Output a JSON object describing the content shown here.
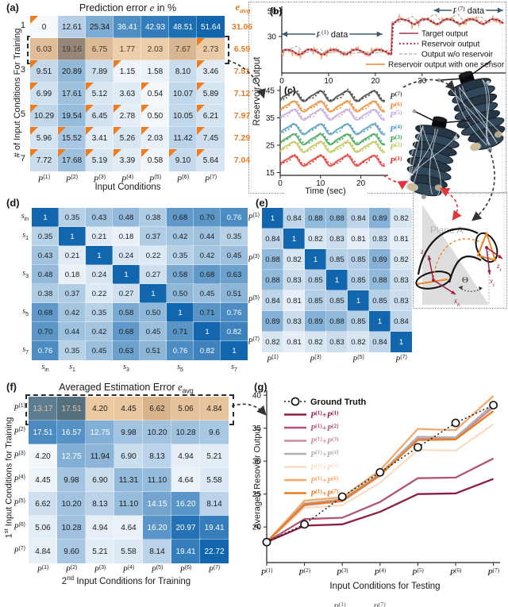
{
  "colors": {
    "accent_orange": "#e87a22",
    "triangle_marker": "#ed7d21",
    "heat_dark_blue": "#1166ae",
    "heat_light": "#f5f9fc",
    "connector_black": "#333333",
    "connector_red": "#e3343c",
    "region_arrow": "#3d5a70"
  },
  "panel_a": {
    "tag": "(a)",
    "title": "Prediction error e in %",
    "eavg_header": "e_avg",
    "ylabel": "# of Input Conditions For Training",
    "xlabel": "Input Conditions",
    "row_ticks": [
      "1",
      "",
      "3",
      "",
      "5",
      "",
      "7"
    ],
    "col_labels": [
      "P(1)",
      "P(2)",
      "P(3)",
      "P(4)",
      "P(5)",
      "P(6)",
      "P(7)"
    ],
    "highlight_row": 1,
    "highlight_cell_colors": [
      "#dfbd98",
      "#958677",
      "#dcba95",
      "#ecceaa",
      "#ebcda9",
      "#d8b691",
      "#e9cba7"
    ],
    "highlight_text_color": "#4a3a2c"
  },
  "panel_b": {
    "tag": "(b)",
    "ylabel_shared": "Reservoir Output",
    "region_labels": [
      "P(1) data",
      "P(7) data"
    ],
    "legend": [
      {
        "label": "Target output",
        "color": "#c06a78",
        "style": "solid"
      },
      {
        "label": "Reservoir output",
        "color": "#a21834",
        "style": "dotted"
      },
      {
        "label": "Output w/o reservoir",
        "color": "#9a9a9a",
        "style": "dashed"
      },
      {
        "label": "Reservoir output with one sensor",
        "color": "#f0a263",
        "style": "solid"
      }
    ]
  },
  "panel_c": {
    "tag": "(c)",
    "xlabel": "Time (sec)"
  },
  "panel_d": {
    "tag": "(d)",
    "row_labels": [
      "s_in",
      "s_1",
      "",
      "s_3",
      "",
      "s_5",
      "",
      "s_7"
    ],
    "col_labels": [
      "s_in",
      "s_1",
      "",
      "s_3",
      "",
      "s_5",
      "",
      "s_7"
    ]
  },
  "panel_e": {
    "tag": "(e)",
    "row_labels": [
      "P(1)",
      "",
      "P(3)",
      "",
      "P(5)",
      "",
      "P(7)"
    ],
    "col_labels": [
      "P(1)",
      "",
      "P(3)",
      "",
      "P(5)",
      "",
      "P(7)"
    ]
  },
  "panel_f": {
    "tag": "(f)",
    "title": "Averaged Estimation Error e_avg",
    "ylabel": "1st Input Conditions for Training",
    "xlabel": "2nd Input Conditions for Training",
    "row_labels": [
      "P(1)",
      "P(2)",
      "P(3)",
      "P(4)",
      "P(5)",
      "P(6)",
      "P(7)"
    ],
    "col_labels": [
      "P(1)",
      "P(2)",
      "P(3)",
      "P(4)",
      "P(5)",
      "P(6)",
      "P(7)"
    ],
    "highlight_row": 0,
    "highlight_cell_colors": [
      "#5c7d92",
      "#54707f",
      "#ecc9a3",
      "#eac7a1",
      "#d9b38c",
      "#e5c29b",
      "#e6c49d"
    ],
    "highlight_text_colors": [
      "#dfc3a0",
      "#dfc3a0",
      "#222222",
      "#222222",
      "#222222",
      "#222222",
      "#222222"
    ]
  },
  "panel_g": {
    "tag": "(g)",
    "ylabel": "Averaged Resovoir Output",
    "xlabel": "Input Conditions for Testing"
  },
  "plane": {
    "label": "Plane A",
    "z_base": "z_b",
    "x_base": "x_b",
    "z_tip": "z_t",
    "x_tip": "x_t",
    "angle": "Θ"
  },
  "caption_fragment": {
    "left": "P(1)",
    "right": "P(7)"
  },
  "chart_data": [
    {
      "id": "a",
      "type": "heatmap",
      "title": "Prediction error e in %",
      "rows": [
        "1",
        "2",
        "3",
        "4",
        "5",
        "6",
        "7"
      ],
      "cols": [
        "P(1)",
        "P(2)",
        "P(3)",
        "P(4)",
        "P(5)",
        "P(6)",
        "P(7)"
      ],
      "values": [
        [
          "0",
          "12.61",
          "25.34",
          "36.41",
          "42.93",
          "48.51",
          "51.64"
        ],
        [
          "6.03",
          "19.16",
          "6.75",
          "1.77",
          "2.03",
          "7.67",
          "2.73"
        ],
        [
          "9.51",
          "20.89",
          "7.89",
          "1.15",
          "1.58",
          "8.10",
          "3.46"
        ],
        [
          "6.99",
          "17.61",
          "5.12",
          "3.63",
          "0.54",
          "10.07",
          "5.89"
        ],
        [
          "10.29",
          "19.54",
          "6.45",
          "2.78",
          "0.50",
          "10.05",
          "6.21"
        ],
        [
          "5.96",
          "15.52",
          "3.41",
          "5.26",
          "2.03",
          "11.42",
          "7.45"
        ],
        [
          "7.72",
          "17.68",
          "5.19",
          "3.39",
          "0.58",
          "9.10",
          "5.64"
        ]
      ],
      "row_avg": [
        "31.06",
        "6.59",
        "7.51",
        "7.12",
        "7.97",
        "7.29",
        "7.04"
      ],
      "triangle_marked_cols_by_row": [
        [
          0
        ],
        [
          6
        ],
        [
          0,
          3,
          6
        ],
        [
          0,
          2,
          4,
          6
        ],
        [
          0,
          2,
          3,
          4,
          6
        ],
        [
          0,
          1,
          2,
          3,
          4,
          6
        ],
        [
          0,
          1,
          2,
          3,
          4,
          5,
          6
        ]
      ]
    },
    {
      "id": "b",
      "type": "line",
      "x_range": [
        0,
        47.5
      ],
      "xticks": [
        0,
        10,
        20,
        30,
        40
      ],
      "yticks": [
        30,
        50
      ],
      "transition_t": 23.5,
      "series": [
        {
          "name": "Target output",
          "color": "#c06a78",
          "style": "solid",
          "desc": "smooth periodic signal, baseline 18 during P(1) data (t<23.5s), baseline 42 during P(7) data, amplitude ~1.9, period ~4.9s"
        },
        {
          "name": "Reservoir output",
          "color": "#a21834",
          "style": "dotted",
          "desc": "closely tracks target output"
        },
        {
          "name": "Output w/o reservoir",
          "color": "#9a9a9a",
          "style": "dashed",
          "desc": "sawtooth-like overshoot up to ~+6.5 above baseline"
        },
        {
          "name": "Reservoir output with one sensor",
          "color": "#f0a263",
          "style": "solid",
          "desc": "noisy version of target, spikes up to ±5"
        }
      ],
      "regions": [
        {
          "label": "P(1) data",
          "x_from": 0,
          "x_to": 23.5
        },
        {
          "label": "P(7) data",
          "x_from": 24.5,
          "x_to": 47.5
        }
      ]
    },
    {
      "id": "c",
      "type": "line",
      "xlabel": "Time (sec)",
      "x_range": [
        0,
        26
      ],
      "xticks": [
        0,
        10,
        20
      ],
      "yticks": [
        15,
        25,
        35,
        45
      ],
      "amplitude": 1.7,
      "period": 6.6,
      "series": [
        {
          "name": "P(1)",
          "color": "#e8302a",
          "baseline": 19.4
        },
        {
          "name": "P(2)",
          "color": "#bfc453",
          "baseline": 24.4
        },
        {
          "name": "P(3)",
          "color": "#3aa553",
          "baseline": 27.2
        },
        {
          "name": "P(4)",
          "color": "#4f9bbf",
          "baseline": 30.9
        },
        {
          "name": "P(5)",
          "color": "#c2a8d8",
          "baseline": 36.2
        },
        {
          "name": "P(6)",
          "color": "#ee8a30",
          "baseline": 39.2
        },
        {
          "name": "P(7)",
          "color": "#3f3f3f",
          "baseline": 43.0
        }
      ],
      "note": "each condition drawn as solid target line plus dotted reservoir-output line"
    },
    {
      "id": "d",
      "type": "heatmap",
      "rows": [
        "s_in",
        "s_1",
        "s_2",
        "s_3",
        "s_4",
        "s_5",
        "s_6",
        "s_7"
      ],
      "cols": [
        "s_in",
        "s_1",
        "s_2",
        "s_3",
        "s_4",
        "s_5",
        "s_6",
        "s_7"
      ],
      "values": [
        [
          "1",
          "0.35",
          "0.43",
          "0.48",
          "0.38",
          "0.68",
          "0.70",
          "0.76"
        ],
        [
          "0.35",
          "1",
          "0.21",
          "0.18",
          "0.37",
          "0.42",
          "0.44",
          "0.35"
        ],
        [
          "0.43",
          "0.21",
          "1",
          "0.24",
          "0.22",
          "0.35",
          "0.42",
          "0.45"
        ],
        [
          "0.48",
          "0.18",
          "0.24",
          "1",
          "0.27",
          "0.58",
          "0.68",
          "0.63"
        ],
        [
          "0.38",
          "0.37",
          "0.22",
          "0.27",
          "1",
          "0.50",
          "0.45",
          "0.51"
        ],
        [
          "0.68",
          "0.42",
          "0.35",
          "0.58",
          "0.50",
          "1",
          "0.71",
          "0.76"
        ],
        [
          "0.70",
          "0.44",
          "0.42",
          "0.68",
          "0.45",
          "0.71",
          "1",
          "0.82"
        ],
        [
          "0.76",
          "0.35",
          "0.45",
          "0.63",
          "0.51",
          "0.76",
          "0.82",
          "1"
        ]
      ]
    },
    {
      "id": "e",
      "type": "heatmap",
      "rows": [
        "P(1)",
        "P(2)",
        "P(3)",
        "P(4)",
        "P(5)",
        "P(6)",
        "P(7)"
      ],
      "cols": [
        "P(1)",
        "P(2)",
        "P(3)",
        "P(4)",
        "P(5)",
        "P(6)",
        "P(7)"
      ],
      "values": [
        [
          "1",
          "0.84",
          "0.88",
          "0.88",
          "0.84",
          "0.89",
          "0.82"
        ],
        [
          "0.84",
          "1",
          "0.82",
          "0.83",
          "0.81",
          "0.83",
          "0.81"
        ],
        [
          "0.88",
          "0.82",
          "1",
          "0.85",
          "0.85",
          "0.89",
          "0.82"
        ],
        [
          "0.88",
          "0.83",
          "0.85",
          "1",
          "0.85",
          "0.88",
          "0.83"
        ],
        [
          "0.84",
          "0.81",
          "0.85",
          "0.85",
          "1",
          "0.85",
          "0.83"
        ],
        [
          "0.89",
          "0.83",
          "0.89",
          "0.88",
          "0.85",
          "1",
          "0.84"
        ],
        [
          "0.82",
          "0.81",
          "0.82",
          "0.83",
          "0.82",
          "0.84",
          "1"
        ]
      ]
    },
    {
      "id": "f",
      "type": "heatmap",
      "title": "Averaged Estimation Error e_avg",
      "rows": [
        "P(1)",
        "P(2)",
        "P(3)",
        "P(4)",
        "P(5)",
        "P(6)",
        "P(7)"
      ],
      "cols": [
        "P(1)",
        "P(2)",
        "P(3)",
        "P(4)",
        "P(5)",
        "P(6)",
        "P(7)"
      ],
      "values": [
        [
          "13.17",
          "17.51",
          "4.20",
          "4.45",
          "6.62",
          "5.06",
          "4.84"
        ],
        [
          "17.51",
          "16.57",
          "12.75",
          "9.98",
          "10.20",
          "10.28",
          "9.6"
        ],
        [
          "4.20",
          "12.75",
          "11.94",
          "6.90",
          "8.13",
          "4.94",
          "5.21"
        ],
        [
          "4.45",
          "9.98",
          "6.90",
          "11.31",
          "11.10",
          "4.64",
          "5.58"
        ],
        [
          "6.62",
          "10.20",
          "8.13",
          "11.10",
          "14.15",
          "16.20",
          "8.14"
        ],
        [
          "5.06",
          "10.28",
          "4.94",
          "4.64",
          "16.20",
          "20.97",
          "19.41"
        ],
        [
          "4.84",
          "9.60",
          "5.21",
          "5.58",
          "8.14",
          "19.41",
          "22.72"
        ]
      ]
    },
    {
      "id": "g",
      "type": "line",
      "title": "",
      "xlabel": "Input Conditions for Testing",
      "ylabel": "Averaged Resovoir Output",
      "x_categories": [
        "P(1)",
        "P(2)",
        "P(3)",
        "P(4)",
        "P(5)",
        "P(6)",
        "P(7)"
      ],
      "yticks": [
        20,
        25,
        30,
        35,
        40
      ],
      "ylim": [
        14.5,
        40.5
      ],
      "legend_position": "upper-left",
      "series": [
        {
          "name": "Ground Truth",
          "color": "#1a1a1a",
          "style": "dotted-circles",
          "values": [
            17.7,
            20.4,
            24.6,
            28.3,
            32.1,
            35.8,
            38.5
          ]
        },
        {
          "name": "P(1)+P(1)",
          "color": "#8c1f3f",
          "style": "solid",
          "values": [
            17.7,
            20.2,
            20.4,
            22.3,
            25.0,
            25.1,
            27.3
          ]
        },
        {
          "name": "P(1)+P(2)",
          "color": "#b05575",
          "style": "solid",
          "values": [
            17.7,
            21.2,
            21.4,
            23.8,
            27.4,
            27.5,
            30.4
          ]
        },
        {
          "name": "P(1)+P(3)",
          "color": "#c88ba0",
          "style": "solid",
          "values": [
            17.7,
            23.3,
            23.9,
            27.8,
            33.4,
            33.4,
            38.2
          ]
        },
        {
          "name": "P(1)+P(4)",
          "color": "#b3b0b3",
          "style": "solid",
          "values": [
            17.7,
            23.6,
            24.2,
            28.1,
            33.7,
            33.6,
            38.6
          ]
        },
        {
          "name": "P(1)+P(5)",
          "color": "#f7ddc4",
          "style": "solid",
          "values": [
            17.7,
            22.9,
            23.3,
            26.7,
            31.7,
            31.6,
            35.6
          ]
        },
        {
          "name": "P(1)+P(6)",
          "color": "#f3a96b",
          "style": "solid",
          "values": [
            17.7,
            24.0,
            24.5,
            28.6,
            34.9,
            34.7,
            39.9
          ]
        },
        {
          "name": "P(1)+P(7)",
          "color": "#ea7d1e",
          "style": "solid",
          "values": [
            17.7,
            23.4,
            24.0,
            27.9,
            33.2,
            33.3,
            37.6
          ]
        }
      ]
    }
  ]
}
